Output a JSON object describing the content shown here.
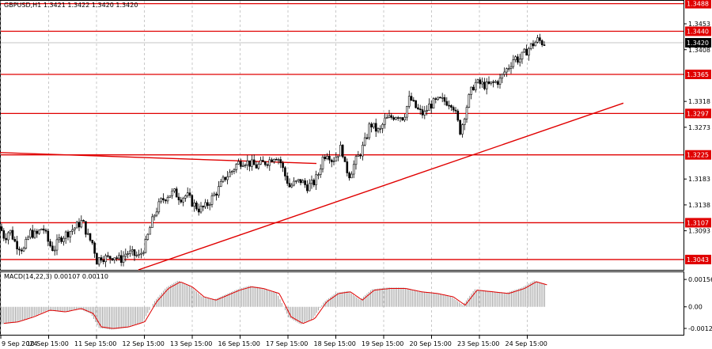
{
  "chart_data": {
    "type": "candlestick",
    "symbol_header": "GBPUSD,H1",
    "ohlc_header": "1.3421 1.3422 1.3420 1.3420",
    "current_price": "1.3420",
    "price_ticks": [
      "1.3453",
      "1.3408",
      "1.3318",
      "1.3273",
      "1.3183",
      "1.3138",
      "1.3093"
    ],
    "ylim": [
      1.3025,
      1.3493
    ],
    "levels": [
      {
        "value": 1.3488,
        "label": "1.3488"
      },
      {
        "value": 1.344,
        "label": "1.3440"
      },
      {
        "value": 1.3365,
        "label": "1.3365"
      },
      {
        "value": 1.3297,
        "label": "1.3297"
      },
      {
        "value": 1.3225,
        "label": "1.3225"
      },
      {
        "value": 1.3107,
        "label": "1.3107"
      },
      {
        "value": 1.3043,
        "label": "1.3043"
      }
    ],
    "time_labels": [
      "9 Sep 2024",
      "10 Sep 15:00",
      "11 Sep 15:00",
      "12 Sep 15:00",
      "13 Sep 15:00",
      "16 Sep 15:00",
      "17 Sep 15:00",
      "18 Sep 15:00",
      "19 Sep 15:00",
      "20 Sep 15:00",
      "23 Sep 15:00",
      "24 Sep 15:00"
    ],
    "price_path": [
      [
        0,
        1.31
      ],
      [
        6,
        1.308
      ],
      [
        12,
        1.3095
      ],
      [
        20,
        1.307
      ],
      [
        30,
        1.306
      ],
      [
        38,
        1.309
      ],
      [
        46,
        1.3085
      ],
      [
        54,
        1.31
      ],
      [
        62,
        1.307
      ],
      [
        68,
        1.306
      ],
      [
        76,
        1.308
      ],
      [
        86,
        1.309
      ],
      [
        96,
        1.31
      ],
      [
        104,
        1.311
      ],
      [
        112,
        1.308
      ],
      [
        118,
        1.307
      ],
      [
        122,
        1.304
      ],
      [
        128,
        1.3048
      ],
      [
        136,
        1.3045
      ],
      [
        144,
        1.305
      ],
      [
        152,
        1.3042
      ],
      [
        160,
        1.3055
      ],
      [
        168,
        1.3052
      ],
      [
        176,
        1.3048
      ],
      [
        184,
        1.307
      ],
      [
        190,
        1.31
      ],
      [
        196,
        1.3125
      ],
      [
        204,
        1.3145
      ],
      [
        212,
        1.3155
      ],
      [
        220,
        1.316
      ],
      [
        228,
        1.315
      ],
      [
        236,
        1.3155
      ],
      [
        244,
        1.314
      ],
      [
        252,
        1.313
      ],
      [
        260,
        1.3135
      ],
      [
        268,
        1.315
      ],
      [
        276,
        1.3165
      ],
      [
        284,
        1.3185
      ],
      [
        292,
        1.3195
      ],
      [
        300,
        1.321
      ],
      [
        308,
        1.3215
      ],
      [
        316,
        1.321
      ],
      [
        324,
        1.3205
      ],
      [
        332,
        1.321
      ],
      [
        340,
        1.3215
      ],
      [
        348,
        1.3225
      ],
      [
        354,
        1.3215
      ],
      [
        360,
        1.319
      ],
      [
        366,
        1.317
      ],
      [
        372,
        1.3175
      ],
      [
        380,
        1.318
      ],
      [
        388,
        1.317
      ],
      [
        396,
        1.3175
      ],
      [
        402,
        1.319
      ],
      [
        408,
        1.322
      ],
      [
        414,
        1.323
      ],
      [
        420,
        1.3215
      ],
      [
        426,
        1.3225
      ],
      [
        432,
        1.324
      ],
      [
        436,
        1.3205
      ],
      [
        442,
        1.319
      ],
      [
        448,
        1.321
      ],
      [
        456,
        1.323
      ],
      [
        462,
        1.325
      ],
      [
        468,
        1.328
      ],
      [
        474,
        1.327
      ],
      [
        480,
        1.3265
      ],
      [
        486,
        1.3285
      ],
      [
        494,
        1.329
      ],
      [
        502,
        1.3295
      ],
      [
        510,
        1.329
      ],
      [
        518,
        1.3325
      ],
      [
        524,
        1.331
      ],
      [
        530,
        1.33
      ],
      [
        536,
        1.3295
      ],
      [
        542,
        1.331
      ],
      [
        548,
        1.3315
      ],
      [
        556,
        1.332
      ],
      [
        564,
        1.3318
      ],
      [
        572,
        1.3315
      ],
      [
        578,
        1.3285
      ],
      [
        582,
        1.3265
      ],
      [
        588,
        1.33
      ],
      [
        594,
        1.333
      ],
      [
        600,
        1.335
      ],
      [
        608,
        1.3348
      ],
      [
        616,
        1.3345
      ],
      [
        624,
        1.335
      ],
      [
        632,
        1.3355
      ],
      [
        638,
        1.337
      ],
      [
        644,
        1.338
      ],
      [
        650,
        1.3395
      ],
      [
        656,
        1.339
      ],
      [
        662,
        1.34
      ],
      [
        668,
        1.341
      ],
      [
        674,
        1.3418
      ],
      [
        680,
        1.3425
      ],
      [
        686,
        1.342
      ]
    ],
    "trendlines": [
      {
        "name": "support",
        "from": [
          175,
          1.3025
        ],
        "to": [
          788,
          1.3315
        ]
      },
      {
        "name": "resistance",
        "from": [
          0,
          1.3229
        ],
        "to": [
          400,
          1.321
        ]
      }
    ],
    "macd": {
      "header": "MACD(14,22,3) 0.00107 0.00110",
      "ticks": [
        "0.00156",
        "0.00",
        "-0.00123"
      ],
      "ylim": [
        -0.0015,
        0.0017
      ],
      "hist": [
        [
          0,
          -0.001
        ],
        [
          20,
          -0.0009
        ],
        [
          40,
          -0.0006
        ],
        [
          60,
          -0.0002
        ],
        [
          80,
          -0.0003
        ],
        [
          100,
          -0.0001
        ],
        [
          115,
          -0.0004
        ],
        [
          125,
          -0.0012
        ],
        [
          140,
          -0.0013
        ],
        [
          160,
          -0.0012
        ],
        [
          180,
          -0.0009
        ],
        [
          195,
          0.0003
        ],
        [
          210,
          0.0011
        ],
        [
          225,
          0.0015
        ],
        [
          240,
          0.0012
        ],
        [
          255,
          0.0006
        ],
        [
          270,
          0.0004
        ],
        [
          285,
          0.0007
        ],
        [
          300,
          0.001
        ],
        [
          315,
          0.0012
        ],
        [
          330,
          0.0011
        ],
        [
          350,
          0.0008
        ],
        [
          365,
          -0.0006
        ],
        [
          380,
          -0.001
        ],
        [
          395,
          -0.0007
        ],
        [
          410,
          0.0003
        ],
        [
          425,
          0.0008
        ],
        [
          440,
          0.0009
        ],
        [
          455,
          0.0004
        ],
        [
          470,
          0.001
        ],
        [
          490,
          0.0011
        ],
        [
          510,
          0.0011
        ],
        [
          530,
          0.0009
        ],
        [
          550,
          0.0008
        ],
        [
          570,
          0.0006
        ],
        [
          585,
          0.0001
        ],
        [
          600,
          0.001
        ],
        [
          620,
          0.0009
        ],
        [
          640,
          0.0008
        ],
        [
          660,
          0.0011
        ],
        [
          675,
          0.0015
        ],
        [
          690,
          0.0013
        ]
      ]
    }
  }
}
